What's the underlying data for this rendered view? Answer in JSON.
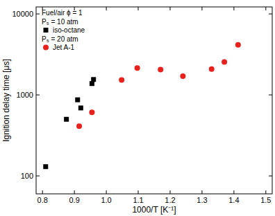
{
  "chart_data": {
    "type": "scatter",
    "x_label": "1000/T [K⁻¹]",
    "y_label": "Ignition delay time [μs]",
    "annotations": [
      "Fuel/air ϕ = 1",
      "P₅ = 10 atm",
      "P₅ = 20 atm"
    ],
    "log": "y",
    "xlim": [
      0.78,
      1.52
    ],
    "ylim": [
      60,
      12200
    ],
    "xticks": [
      0.8,
      0.9,
      {
        "value": 1,
        "label": "1.0"
      },
      1.1,
      1.2,
      1.3,
      1.4,
      1.5
    ],
    "yticks": [
      100,
      1000,
      10000
    ],
    "legend": "top-left",
    "series": [
      {
        "name": "iso-octane",
        "color": "#000000",
        "marker": "square",
        "x": [
          0.81,
          0.875,
          0.91,
          0.92,
          0.955,
          0.96
        ],
        "values": [
          130,
          500,
          870,
          690,
          1380,
          1550
        ]
      },
      {
        "name": "Jet A-1",
        "color": "#e8211d",
        "marker": "circle",
        "x": [
          0.915,
          0.955,
          1.048,
          1.097,
          1.17,
          1.24,
          1.33,
          1.37,
          1.413
        ],
        "values": [
          410,
          610,
          1530,
          2150,
          2050,
          1700,
          2080,
          2550,
          4150
        ]
      }
    ]
  }
}
